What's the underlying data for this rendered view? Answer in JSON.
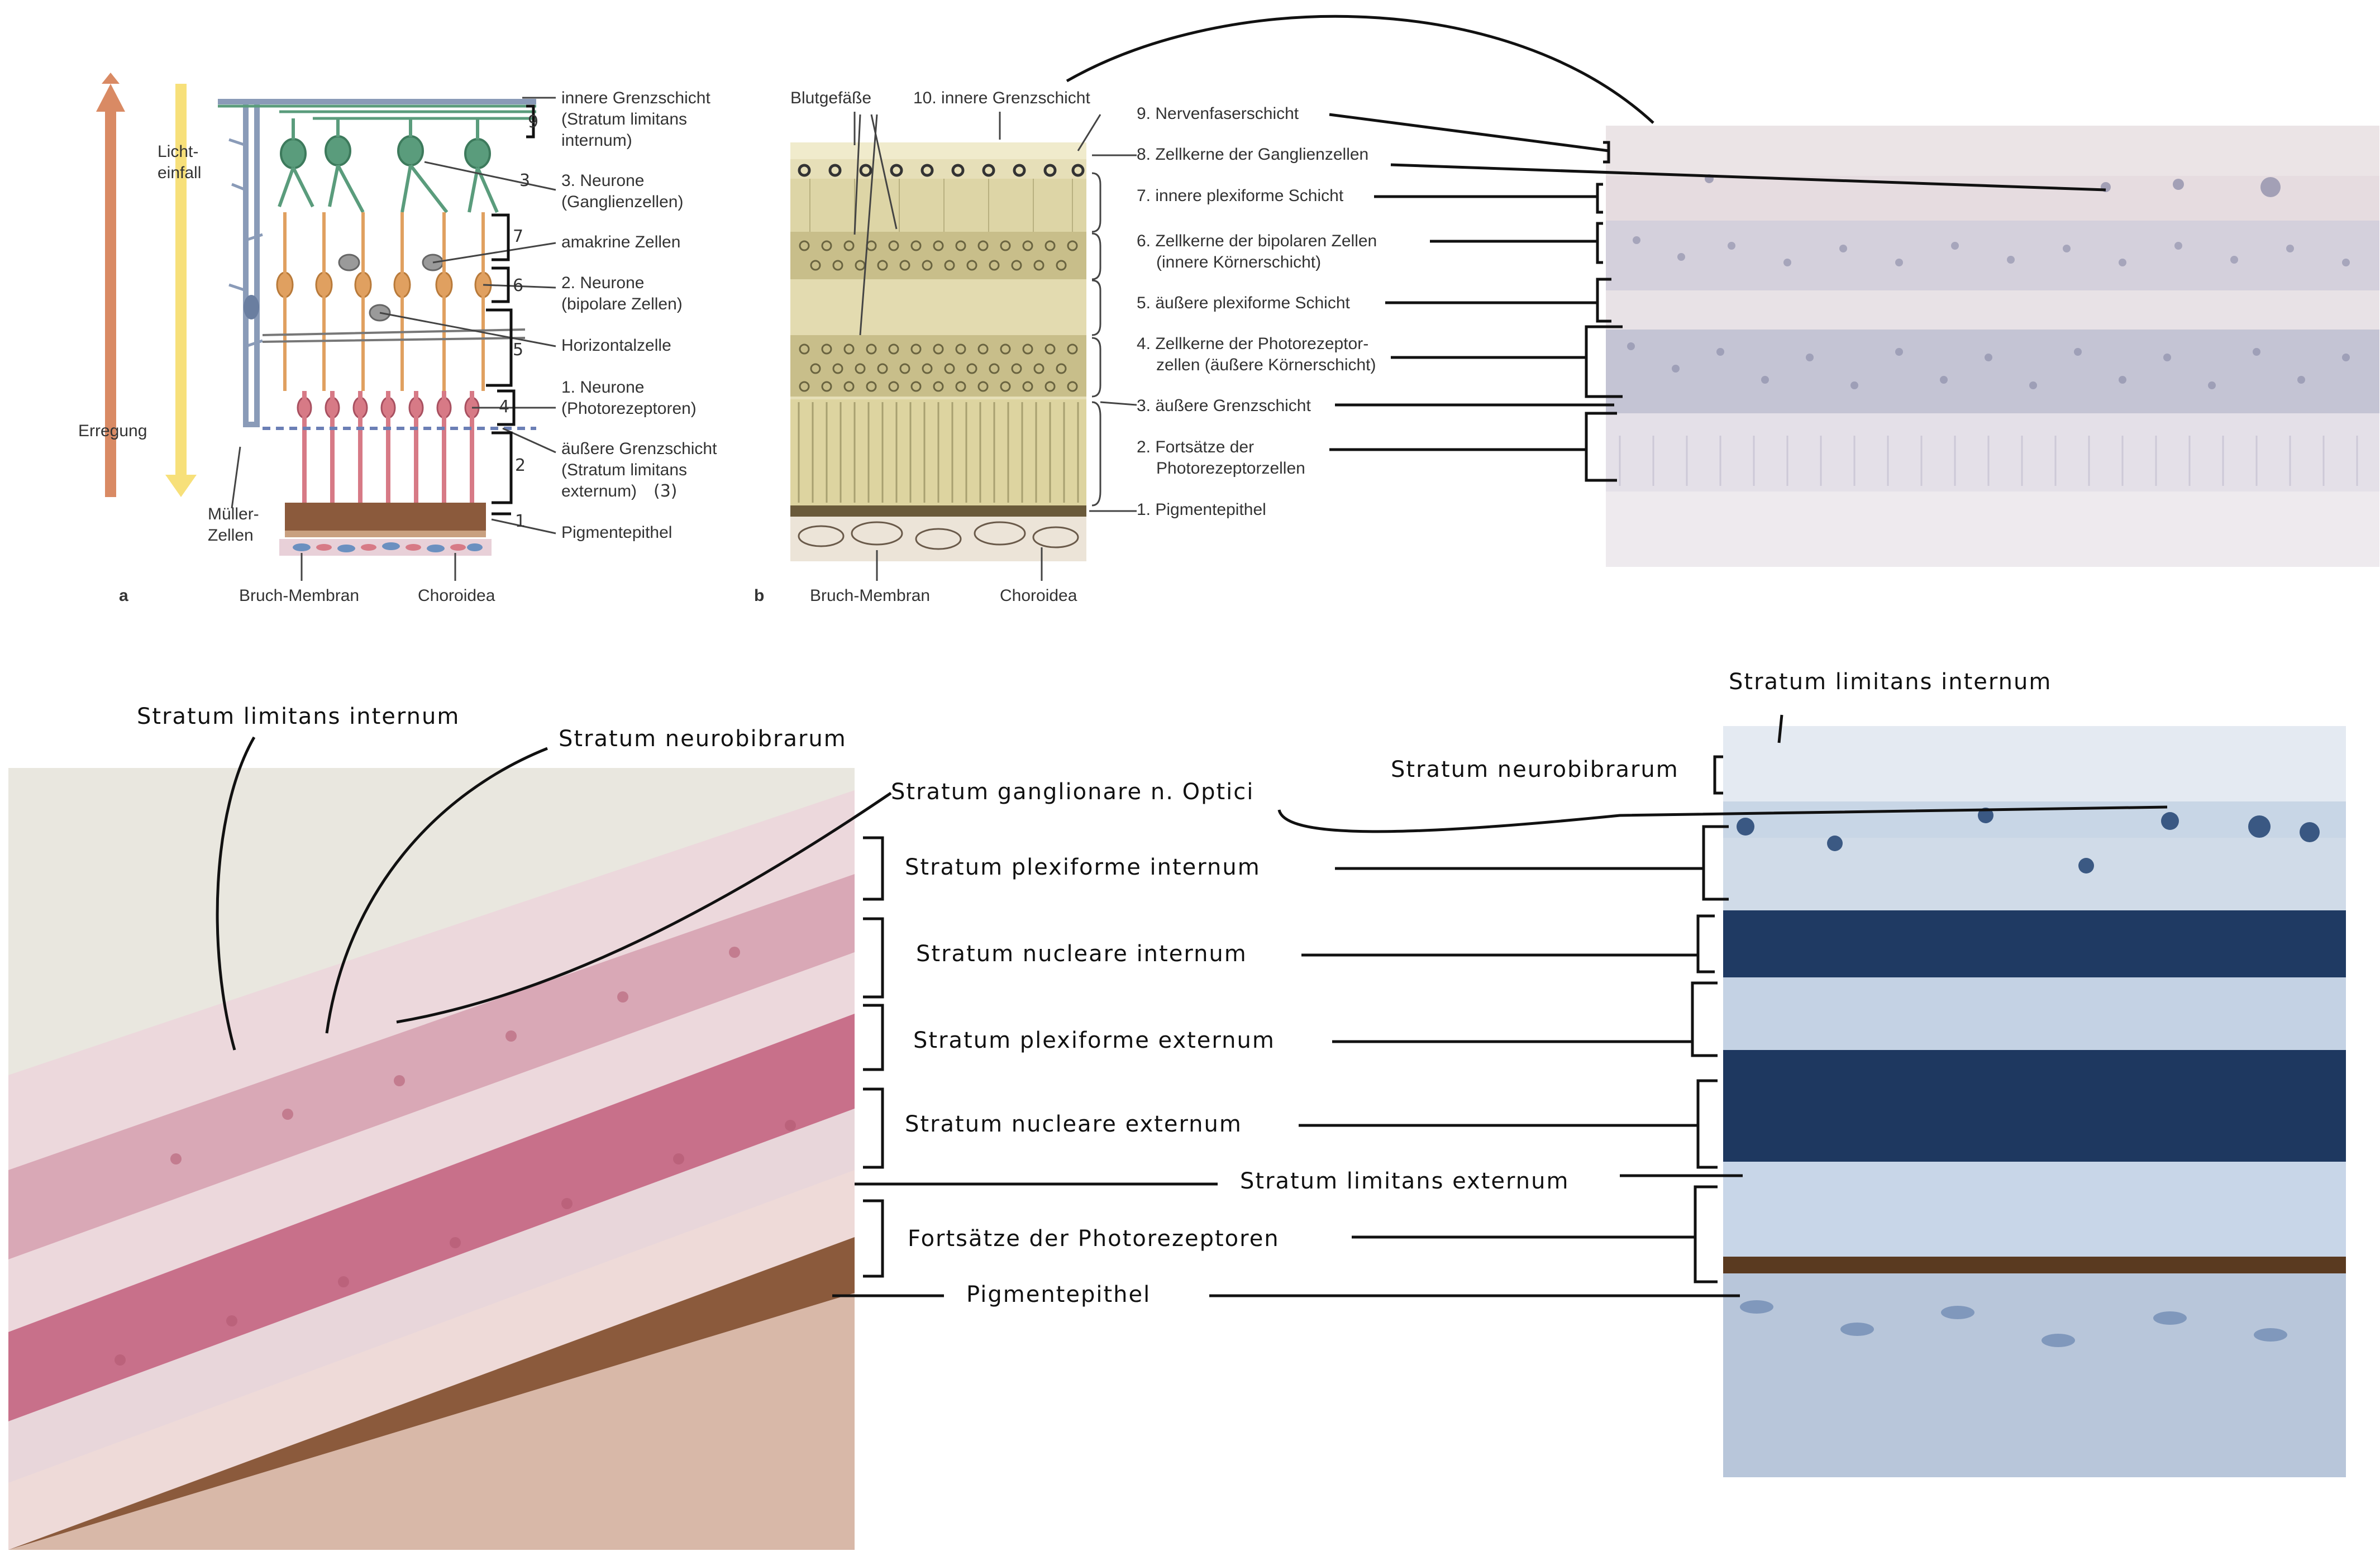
{
  "panel_a": {
    "letter": "a",
    "lichteinfall": [
      "Licht-",
      "einfall"
    ],
    "erregung": "Erregung",
    "mueller": [
      "Müller-",
      "Zellen"
    ],
    "labels": [
      [
        "innere Grenzschicht",
        "(Stratum limitans",
        "internum)"
      ],
      [
        "3. Neurone",
        "(Ganglienzellen)"
      ],
      [
        "amakrine Zellen"
      ],
      [
        "2. Neurone",
        "(bipolare Zellen)"
      ],
      [
        "Horizontalzelle"
      ],
      [
        "1. Neurone",
        "(Photorezeptoren)"
      ],
      [
        "äußere Grenzschicht",
        "(Stratum limitans",
        "externum)"
      ],
      [
        "Pigmentepithel"
      ]
    ],
    "numbers": [
      "9",
      "3",
      "7",
      "6",
      "5",
      "4",
      "2",
      "1"
    ],
    "extra_note": "(3)",
    "bottom": [
      "Bruch-Membran",
      "Choroidea"
    ]
  },
  "panel_b": {
    "letter": "b",
    "top_labels": [
      "Blutgefäße",
      "10. innere Grenzschicht"
    ],
    "labels": [
      [
        "9. Nervenfaserschicht"
      ],
      [
        "8. Zellkerne der Ganglienzellen"
      ],
      [
        "7. innere plexiforme Schicht"
      ],
      [
        "6. Zellkerne der bipolaren Zellen",
        "(innere Körnerschicht)"
      ],
      [
        "5. äußere plexiforme Schicht"
      ],
      [
        "4. Zellkerne der Photorezeptor-",
        "zellen (äußere Körnerschicht)"
      ],
      [
        "3. äußere Grenzschicht"
      ],
      [
        "2. Fortsätze der",
        "Photorezeptorzellen"
      ],
      [
        "1. Pigmentepithel"
      ]
    ],
    "bottom": [
      "Bruch-Membran",
      "Choroidea"
    ]
  },
  "bottom_left": {
    "labels": [
      "Stratum limitans internum",
      "Stratum neurobibrarum",
      "Stratum ganglionare n. Optici"
    ]
  },
  "bottom_center": {
    "labels": [
      "Stratum plexiforme internum",
      "Stratum nucleare internum",
      "Stratum plexiforme externum",
      "Stratum nucleare externum",
      "Stratum limitans externum",
      "Fortsätze der Photorezeptoren",
      "Pigmentepithel"
    ]
  },
  "bottom_right": {
    "labels": [
      "Stratum limitans internum",
      "Stratum neurobibrarum"
    ]
  },
  "colors": {
    "erregung_arrow": "#d98a64",
    "licht_arrow": "#f7e07a",
    "ganglion_green": "#5a9c7c",
    "bipolar_orange": "#e0a060",
    "photoreceptor_pink": "#d77a86",
    "mueller_blue": "#8a9bb8",
    "pigment_brown": "#8b5a3c"
  }
}
